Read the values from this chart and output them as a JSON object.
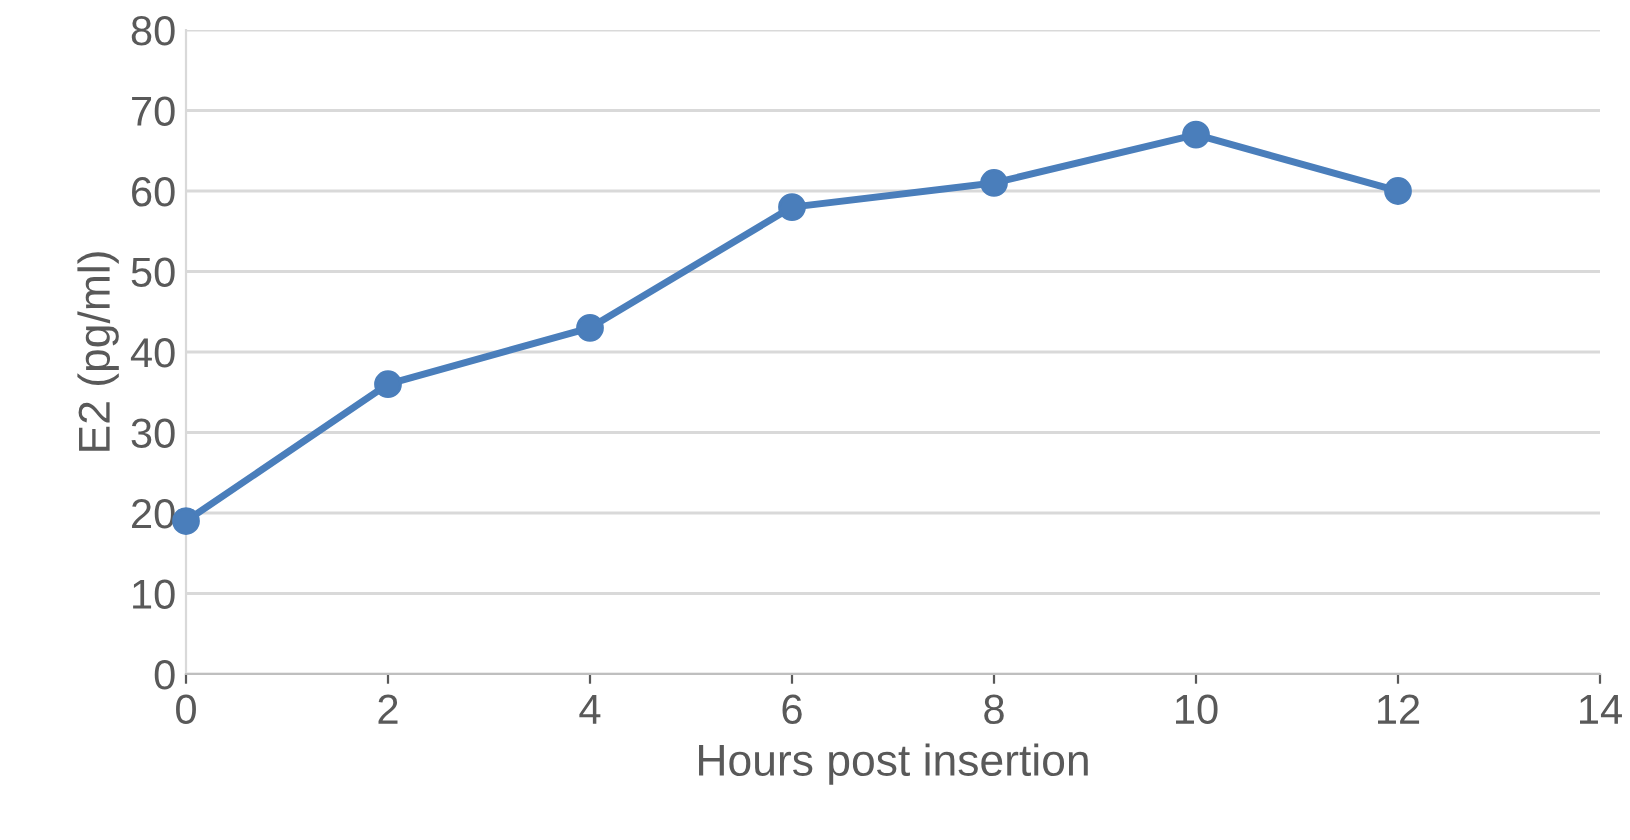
{
  "chart_data": {
    "type": "line",
    "xlabel": "Hours post insertion",
    "ylabel": "E2 (pg/ml)",
    "x": [
      0,
      2,
      4,
      6,
      8,
      10,
      12
    ],
    "series": [
      {
        "color": "#4a7ebb",
        "values": [
          19,
          36,
          43,
          58,
          61,
          67,
          60
        ]
      }
    ],
    "xlim": [
      0,
      14
    ],
    "xticks": [
      0,
      2,
      4,
      6,
      8,
      10,
      12,
      14
    ],
    "ylim": [
      0,
      80
    ],
    "yticks": [
      0,
      10,
      20,
      30,
      40,
      50,
      60,
      70,
      80
    ],
    "grid": "y",
    "marker": "circle",
    "line_style": "solid"
  }
}
